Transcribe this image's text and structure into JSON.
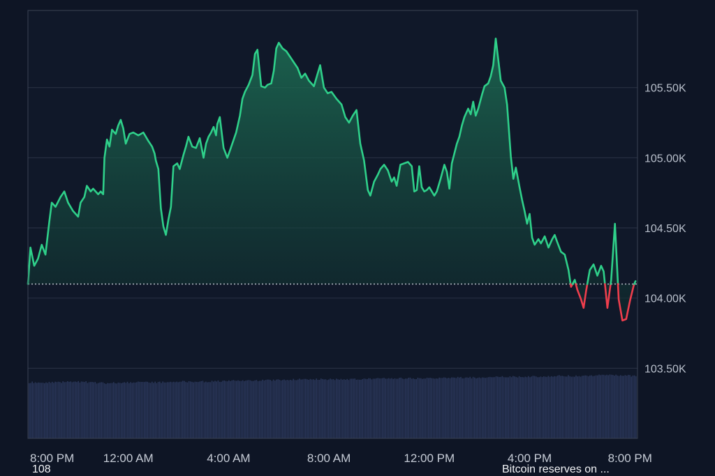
{
  "chart_data": {
    "type": "area",
    "title": "",
    "xlabel": "",
    "ylabel": "",
    "ylim": [
      103000,
      106050
    ],
    "y_ticks": [
      {
        "value": 103500,
        "label": "103.50K"
      },
      {
        "value": 104000,
        "label": "104.00K"
      },
      {
        "value": 104500,
        "label": "104.50K"
      },
      {
        "value": 105000,
        "label": "105.00K"
      },
      {
        "value": 105500,
        "label": "105.50K"
      }
    ],
    "x_range": [
      0,
      24.3
    ],
    "x_ticks": [
      {
        "hour": 0,
        "label": "8:00 PM"
      },
      {
        "hour": 4,
        "label": "12:00 AM"
      },
      {
        "hour": 8,
        "label": "4:00 AM"
      },
      {
        "hour": 12,
        "label": "8:00 AM"
      },
      {
        "hour": 16,
        "label": "12:00 PM"
      },
      {
        "hour": 20,
        "label": "4:00 PM"
      },
      {
        "hour": 24,
        "label": "8:00 PM"
      }
    ],
    "baseline": 104100,
    "colors": {
      "above": "#2fd08a",
      "below": "#ef3e4d",
      "volume": "#2a3659"
    },
    "grid": true,
    "series": [
      {
        "values": [
          [
            0.0,
            104100
          ],
          [
            0.1,
            104360
          ],
          [
            0.25,
            104230
          ],
          [
            0.4,
            104280
          ],
          [
            0.55,
            104380
          ],
          [
            0.7,
            104310
          ],
          [
            0.85,
            104540
          ],
          [
            0.95,
            104680
          ],
          [
            1.1,
            104650
          ],
          [
            1.3,
            104720
          ],
          [
            1.45,
            104760
          ],
          [
            1.6,
            104680
          ],
          [
            1.8,
            104620
          ],
          [
            2.0,
            104580
          ],
          [
            2.1,
            104680
          ],
          [
            2.25,
            104720
          ],
          [
            2.35,
            104800
          ],
          [
            2.5,
            104760
          ],
          [
            2.6,
            104780
          ],
          [
            2.8,
            104740
          ],
          [
            2.9,
            104760
          ],
          [
            3.0,
            104740
          ],
          [
            3.05,
            105000
          ],
          [
            3.15,
            105130
          ],
          [
            3.25,
            105080
          ],
          [
            3.35,
            105200
          ],
          [
            3.5,
            105170
          ],
          [
            3.6,
            105230
          ],
          [
            3.7,
            105270
          ],
          [
            3.8,
            105210
          ],
          [
            3.9,
            105100
          ],
          [
            4.05,
            105170
          ],
          [
            4.2,
            105180
          ],
          [
            4.4,
            105160
          ],
          [
            4.6,
            105180
          ],
          [
            4.8,
            105120
          ],
          [
            4.95,
            105080
          ],
          [
            5.05,
            105030
          ],
          [
            5.1,
            104980
          ],
          [
            5.2,
            104920
          ],
          [
            5.3,
            104640
          ],
          [
            5.4,
            104510
          ],
          [
            5.5,
            104450
          ],
          [
            5.6,
            104560
          ],
          [
            5.7,
            104650
          ],
          [
            5.8,
            104940
          ],
          [
            5.95,
            104960
          ],
          [
            6.05,
            104920
          ],
          [
            6.2,
            105020
          ],
          [
            6.3,
            105080
          ],
          [
            6.4,
            105150
          ],
          [
            6.55,
            105080
          ],
          [
            6.7,
            105070
          ],
          [
            6.85,
            105140
          ],
          [
            7.0,
            105000
          ],
          [
            7.1,
            105100
          ],
          [
            7.2,
            105150
          ],
          [
            7.3,
            105180
          ],
          [
            7.4,
            105220
          ],
          [
            7.5,
            105160
          ],
          [
            7.55,
            105240
          ],
          [
            7.65,
            105290
          ],
          [
            7.8,
            105070
          ],
          [
            7.95,
            105000
          ],
          [
            8.05,
            105050
          ],
          [
            8.3,
            105180
          ],
          [
            8.45,
            105300
          ],
          [
            8.55,
            105420
          ],
          [
            8.65,
            105470
          ],
          [
            8.8,
            105520
          ],
          [
            8.95,
            105590
          ],
          [
            9.05,
            105740
          ],
          [
            9.15,
            105770
          ],
          [
            9.3,
            105510
          ],
          [
            9.45,
            105500
          ],
          [
            9.55,
            105520
          ],
          [
            9.7,
            105530
          ],
          [
            9.8,
            105620
          ],
          [
            9.9,
            105780
          ],
          [
            10.0,
            105820
          ],
          [
            10.15,
            105780
          ],
          [
            10.3,
            105760
          ],
          [
            10.45,
            105720
          ],
          [
            10.6,
            105680
          ],
          [
            10.75,
            105640
          ],
          [
            10.9,
            105570
          ],
          [
            11.05,
            105600
          ],
          [
            11.2,
            105550
          ],
          [
            11.4,
            105510
          ],
          [
            11.55,
            105600
          ],
          [
            11.65,
            105660
          ],
          [
            11.8,
            105500
          ],
          [
            11.95,
            105460
          ],
          [
            12.1,
            105470
          ],
          [
            12.3,
            105420
          ],
          [
            12.5,
            105380
          ],
          [
            12.65,
            105290
          ],
          [
            12.8,
            105250
          ],
          [
            12.95,
            105300
          ],
          [
            13.1,
            105340
          ],
          [
            13.25,
            105100
          ],
          [
            13.4,
            104980
          ],
          [
            13.55,
            104770
          ],
          [
            13.65,
            104730
          ],
          [
            13.8,
            104830
          ],
          [
            13.95,
            104880
          ],
          [
            14.05,
            104920
          ],
          [
            14.2,
            104950
          ],
          [
            14.35,
            104910
          ],
          [
            14.5,
            104830
          ],
          [
            14.6,
            104860
          ],
          [
            14.7,
            104800
          ],
          [
            14.85,
            104950
          ],
          [
            15.0,
            104960
          ],
          [
            15.15,
            104970
          ],
          [
            15.3,
            104940
          ],
          [
            15.4,
            104760
          ],
          [
            15.5,
            104770
          ],
          [
            15.6,
            104940
          ],
          [
            15.7,
            104790
          ],
          [
            15.8,
            104760
          ],
          [
            15.9,
            104770
          ],
          [
            16.0,
            104790
          ],
          [
            16.1,
            104760
          ],
          [
            16.2,
            104730
          ],
          [
            16.3,
            104760
          ],
          [
            16.45,
            104850
          ],
          [
            16.6,
            104950
          ],
          [
            16.7,
            104900
          ],
          [
            16.8,
            104780
          ],
          [
            16.9,
            104960
          ],
          [
            17.0,
            105030
          ],
          [
            17.1,
            105100
          ],
          [
            17.2,
            105150
          ],
          [
            17.3,
            105230
          ],
          [
            17.4,
            105290
          ],
          [
            17.55,
            105350
          ],
          [
            17.65,
            105310
          ],
          [
            17.75,
            105400
          ],
          [
            17.85,
            105300
          ],
          [
            17.95,
            105350
          ],
          [
            18.1,
            105450
          ],
          [
            18.2,
            105510
          ],
          [
            18.35,
            105530
          ],
          [
            18.45,
            105580
          ],
          [
            18.55,
            105660
          ],
          [
            18.65,
            105850
          ],
          [
            18.75,
            105700
          ],
          [
            18.85,
            105550
          ],
          [
            19.0,
            105500
          ],
          [
            19.1,
            105380
          ],
          [
            19.25,
            105010
          ],
          [
            19.35,
            104850
          ],
          [
            19.45,
            104930
          ],
          [
            19.6,
            104790
          ],
          [
            19.7,
            104700
          ],
          [
            19.8,
            104620
          ],
          [
            19.9,
            104530
          ],
          [
            20.0,
            104600
          ],
          [
            20.1,
            104430
          ],
          [
            20.2,
            104380
          ],
          [
            20.35,
            104420
          ],
          [
            20.45,
            104390
          ],
          [
            20.6,
            104440
          ],
          [
            20.75,
            104360
          ],
          [
            20.9,
            104420
          ],
          [
            21.0,
            104450
          ],
          [
            21.1,
            104400
          ],
          [
            21.25,
            104330
          ],
          [
            21.4,
            104310
          ],
          [
            21.55,
            104200
          ],
          [
            21.65,
            104080
          ],
          [
            21.8,
            104130
          ],
          [
            21.9,
            104060
          ],
          [
            22.05,
            103990
          ],
          [
            22.15,
            103930
          ],
          [
            22.25,
            104050
          ],
          [
            22.4,
            104200
          ],
          [
            22.55,
            104240
          ],
          [
            22.7,
            104160
          ],
          [
            22.85,
            104230
          ],
          [
            22.95,
            104190
          ],
          [
            23.1,
            103930
          ],
          [
            23.25,
            104130
          ],
          [
            23.4,
            104530
          ],
          [
            23.55,
            103990
          ],
          [
            23.7,
            103840
          ],
          [
            23.85,
            103850
          ],
          [
            24.0,
            103980
          ],
          [
            24.15,
            104090
          ],
          [
            24.22,
            104120
          ]
        ]
      },
      {
        "name": "",
        "type": "volume",
        "note_values_relative": true,
        "values": [
          [
            0.0,
            0.68
          ],
          [
            1.0,
            0.68
          ],
          [
            2.0,
            0.69
          ],
          [
            3.0,
            0.67
          ],
          [
            4.0,
            0.68
          ],
          [
            5.0,
            0.68
          ],
          [
            6.0,
            0.69
          ],
          [
            7.0,
            0.69
          ],
          [
            8.0,
            0.7
          ],
          [
            9.0,
            0.7
          ],
          [
            10.0,
            0.71
          ],
          [
            11.0,
            0.72
          ],
          [
            12.0,
            0.72
          ],
          [
            13.0,
            0.72
          ],
          [
            14.0,
            0.73
          ],
          [
            15.0,
            0.73
          ],
          [
            16.0,
            0.73
          ],
          [
            17.0,
            0.74
          ],
          [
            18.0,
            0.74
          ],
          [
            19.0,
            0.75
          ],
          [
            20.0,
            0.75
          ],
          [
            21.0,
            0.76
          ],
          [
            22.0,
            0.76
          ],
          [
            23.0,
            0.77
          ],
          [
            24.2,
            0.76
          ]
        ]
      }
    ]
  },
  "footer": {
    "left_text": "108",
    "right_text": "Bitcoin reserves on ..."
  }
}
